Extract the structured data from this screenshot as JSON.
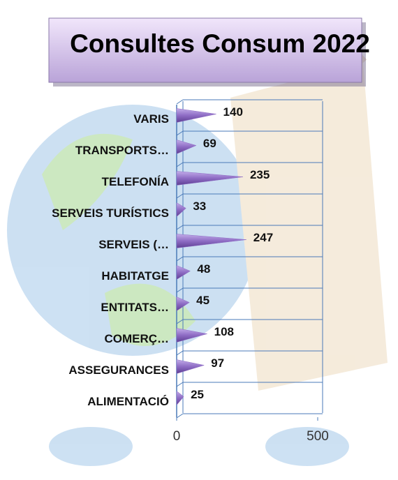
{
  "chart_data": {
    "type": "bar",
    "orientation": "horizontal",
    "title": "Consultes Consum 2022",
    "categories": [
      "VARIS",
      "TRANSPORTS…",
      "TELEFONÍA",
      "SERVEIS TURÍSTICS",
      "SERVEIS  (…",
      "HABITATGE",
      "ENTITATS…",
      "COMERÇ…",
      "ASSEGURANCES",
      "ALIMENTACIÓ"
    ],
    "values": [
      140,
      69,
      235,
      33,
      247,
      48,
      45,
      108,
      97,
      25
    ],
    "color": "#8e6cc4",
    "xlim": [
      0,
      500
    ],
    "xticks": [
      0,
      500
    ]
  }
}
